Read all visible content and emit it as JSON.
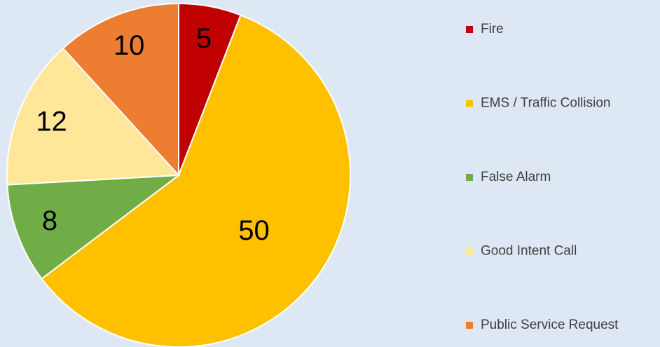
{
  "chart_data": {
    "type": "pie",
    "categories": [
      "Fire",
      "EMS / Traffic Collision",
      "False Alarm",
      "Good Intent Call",
      "Public Service Request"
    ],
    "values": [
      5,
      50,
      8,
      12,
      10
    ],
    "colors": [
      "#c00000",
      "#ffc000",
      "#70ad47",
      "#ffe699",
      "#ed7d31"
    ],
    "legend": "right"
  }
}
